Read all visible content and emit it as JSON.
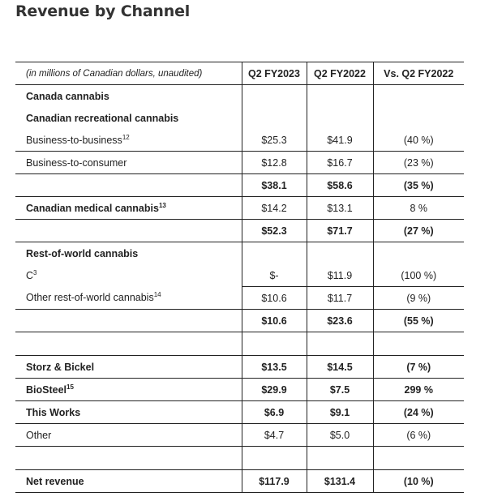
{
  "title": "Revenue by Channel",
  "header": {
    "note": "(in millions of Canadian dollars, unaudited)",
    "col1": "Q2 FY2023",
    "col2": "Q2 FY2022",
    "col3": "Vs. Q2 FY2022"
  },
  "rows": {
    "canada_cannabis": "Canada cannabis",
    "canadian_rec": "Canadian recreational cannabis",
    "b2b": {
      "label": "Business-to-business",
      "sup": "12",
      "v1": "$25.3",
      "v2": "$41.9",
      "v3": "(40 %)"
    },
    "b2c": {
      "label": "Business-to-consumer",
      "v1": "$12.8",
      "v2": "$16.7",
      "v3": "(23 %)"
    },
    "rec_total": {
      "v1": "$38.1",
      "v2": "$58.6",
      "v3": "(35 %)"
    },
    "medical": {
      "label": "Canadian medical cannabis",
      "sup": "13",
      "v1": "$14.2",
      "v2": "$13.1",
      "v3": "8 %"
    },
    "canada_total": {
      "v1": "$52.3",
      "v2": "$71.7",
      "v3": "(27 %)"
    },
    "row_cannabis": "Rest-of-world cannabis",
    "c3": {
      "label": "C",
      "sup": "3",
      "v1": "$-",
      "v2": "$11.9",
      "v3": "(100 %)"
    },
    "other_row": {
      "label": "Other rest-of-world cannabis",
      "sup": "14",
      "v1": "$10.6",
      "v2": "$11.7",
      "v3": "(9 %)"
    },
    "row_total": {
      "v1": "$10.6",
      "v2": "$23.6",
      "v3": "(55 %)"
    },
    "storz": {
      "label": "Storz & Bickel",
      "v1": "$13.5",
      "v2": "$14.5",
      "v3": "(7 %)"
    },
    "biosteel": {
      "label": "BioSteel",
      "sup": "15",
      "v1": "$29.9",
      "v2": "$7.5",
      "v3": "299 %"
    },
    "thisworks": {
      "label": "This Works",
      "v1": "$6.9",
      "v2": "$9.1",
      "v3": "(24 %)"
    },
    "other": {
      "label": "Other",
      "v1": "$4.7",
      "v2": "$5.0",
      "v3": "(6 %)"
    },
    "net": {
      "label": "Net revenue",
      "v1": "$117.9",
      "v2": "$131.4",
      "v3": "(10 %)"
    }
  }
}
